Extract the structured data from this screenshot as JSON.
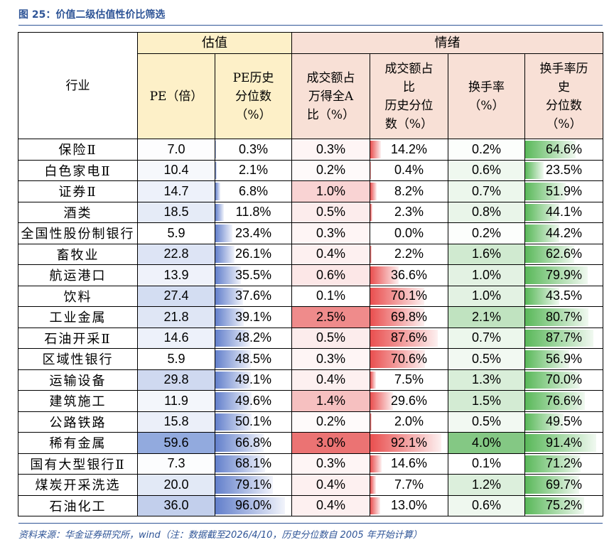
{
  "header": {
    "title": "图 25：价值二级估值性价比筛选"
  },
  "table": {
    "group_headers": {
      "industry": "行业",
      "valuation": "估值",
      "sentiment": "情绪"
    },
    "columns": [
      "PE（倍）",
      "PE历史\n分位数\n（%）",
      "成交额占\n万得全A\n比（%）",
      "成交额占\n比\n历史分位\n数（%）",
      "换手率\n（%）",
      "换手率历\n史\n分位数\n（%）"
    ],
    "rows": [
      [
        "保险Ⅱ",
        "7.0",
        "0.3%",
        "0.3%",
        "14.2%",
        "0.2%",
        "64.6%"
      ],
      [
        "白色家电Ⅱ",
        "10.4",
        "2.1%",
        "0.2%",
        "0.4%",
        "0.6%",
        "23.5%"
      ],
      [
        "证券Ⅱ",
        "14.7",
        "6.8%",
        "1.0%",
        "8.2%",
        "0.7%",
        "51.9%"
      ],
      [
        "酒类",
        "18.5",
        "11.8%",
        "0.5%",
        "2.3%",
        "0.8%",
        "44.1%"
      ],
      [
        "全国性股份制银行",
        "5.9",
        "23.4%",
        "0.3%",
        "0.0%",
        "0.2%",
        "44.2%"
      ],
      [
        "畜牧业",
        "22.8",
        "26.1%",
        "0.4%",
        "2.2%",
        "1.6%",
        "62.6%"
      ],
      [
        "航运港口",
        "13.9",
        "35.5%",
        "0.6%",
        "36.6%",
        "1.0%",
        "79.9%"
      ],
      [
        "饮料",
        "27.4",
        "37.6%",
        "0.1%",
        "70.1%",
        "1.0%",
        "43.5%"
      ],
      [
        "工业金属",
        "21.8",
        "39.1%",
        "2.5%",
        "69.8%",
        "2.1%",
        "80.7%"
      ],
      [
        "石油开采Ⅱ",
        "14.6",
        "48.2%",
        "0.5%",
        "87.6%",
        "0.7%",
        "87.7%"
      ],
      [
        "区域性银行",
        "5.9",
        "48.5%",
        "0.3%",
        "70.6%",
        "0.5%",
        "56.9%"
      ],
      [
        "运输设备",
        "29.8",
        "49.1%",
        "0.4%",
        "7.5%",
        "1.3%",
        "70.0%"
      ],
      [
        "建筑施工",
        "11.9",
        "49.6%",
        "1.4%",
        "29.6%",
        "1.5%",
        "76.6%"
      ],
      [
        "公路铁路",
        "15.8",
        "50.1%",
        "0.2%",
        "2.0%",
        "0.5%",
        "49.5%"
      ],
      [
        "稀有金属",
        "59.6",
        "66.8%",
        "3.0%",
        "92.1%",
        "4.0%",
        "91.4%"
      ],
      [
        "国有大型银行Ⅱ",
        "7.3",
        "68.1%",
        "0.3%",
        "14.6%",
        "0.1%",
        "71.2%"
      ],
      [
        "煤炭开采洗选",
        "20.0",
        "79.1%",
        "0.4%",
        "7.7%",
        "1.2%",
        "69.7%"
      ],
      [
        "石油化工",
        "36.0",
        "96.0%",
        "0.4%",
        "13.0%",
        "0.6%",
        "75.2%"
      ]
    ]
  },
  "footer": {
    "source": "资料来源：华金证券研究所，wind（注：数据截至2026/4/10，历史分位数自 2005 年开始计算）"
  }
}
